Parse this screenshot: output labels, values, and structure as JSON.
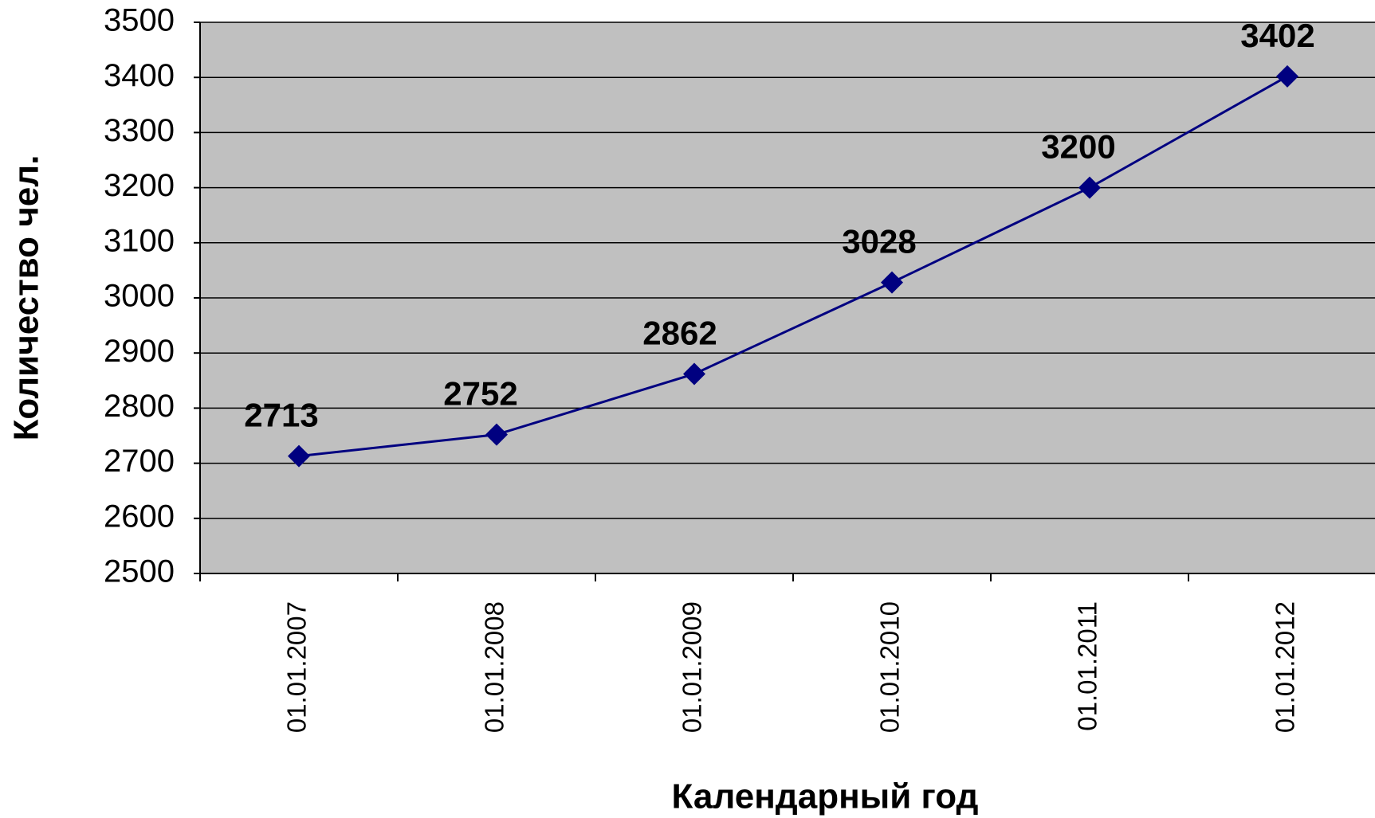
{
  "chart_data": {
    "type": "line",
    "x_label": "Календарный год",
    "y_label": "Количество чел.",
    "categories": [
      "01.01.2007",
      "01.01.2008",
      "01.01.2009",
      "01.01.2010",
      "01.01.2011",
      "01.01.2012"
    ],
    "values": [
      2713,
      2752,
      2862,
      3028,
      3200,
      3402
    ],
    "color": "#000080",
    "background": "#c0c0c0",
    "ylim": [
      2500,
      3500
    ],
    "yticks": [
      2500,
      2600,
      2700,
      2800,
      2900,
      3000,
      3100,
      3200,
      3300,
      3400,
      3500
    ],
    "grid": true
  }
}
